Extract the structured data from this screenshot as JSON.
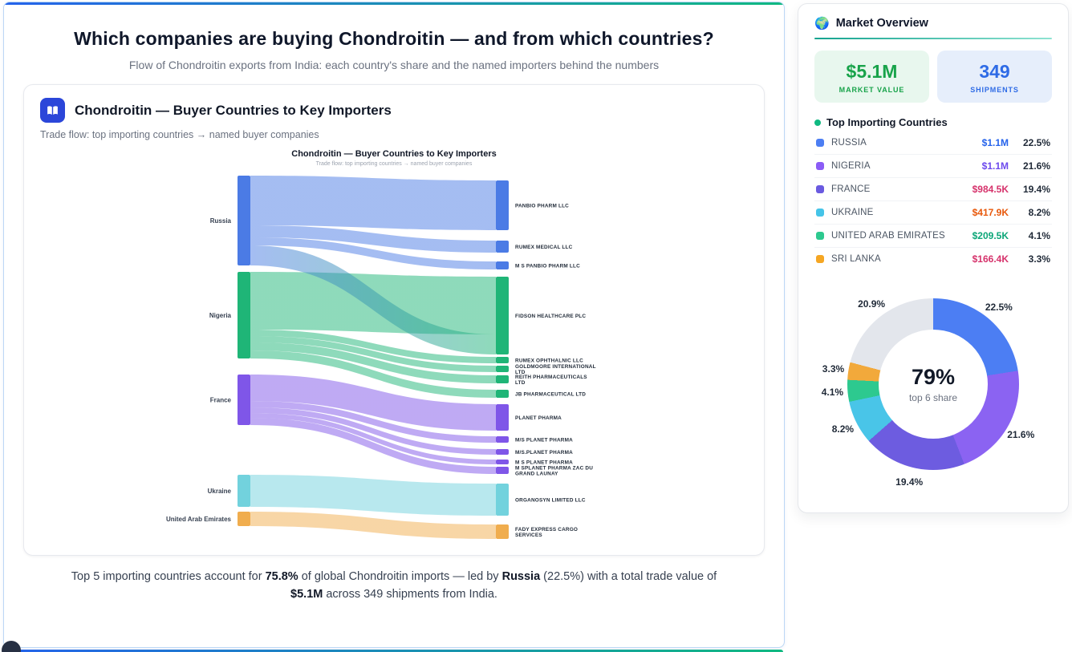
{
  "page": {
    "title": "Which companies are buying Chondroitin — and from which countries?",
    "subtitle": "Flow of Chondroitin exports from India: each country's share and the named importers behind the numbers"
  },
  "card": {
    "title": "Chondroitin — Buyer Countries to Key Importers",
    "subtitle": "Trade flow: top importing countries → named buyer companies"
  },
  "footer": {
    "part1": "Top 5 importing countries account for ",
    "pct": "75.8%",
    "part2": " of global Chondroitin imports — led by ",
    "country": "Russia",
    "part3": " (22.5%) with a total trade value of ",
    "value": "$5.1M",
    "part4": " across 349 shipments from India."
  },
  "sidebar": {
    "globe_icon": "🌍",
    "title": "Market Overview",
    "stats": [
      {
        "value": "$5.1M",
        "label": "MARKET VALUE"
      },
      {
        "value": "349",
        "label": "SHIPMENTS"
      }
    ],
    "list_title": "Top Importing Countries",
    "countries": [
      {
        "name": "RUSSIA",
        "value": "$1.1M",
        "pct": "22.5%",
        "bullet": "#4c7ef3",
        "value_color": "#2563eb"
      },
      {
        "name": "NIGERIA",
        "value": "$1.1M",
        "pct": "21.6%",
        "bullet": "#8b5cf6",
        "value_color": "#6d4aed"
      },
      {
        "name": "FRANCE",
        "value": "$984.5K",
        "pct": "19.4%",
        "bullet": "#6a5ae0",
        "value_color": "#d6336c"
      },
      {
        "name": "UKRAINE",
        "value": "$417.9K",
        "pct": "8.2%",
        "bullet": "#45c4e8",
        "value_color": "#e8590c"
      },
      {
        "name": "UNITED ARAB EMIRATES",
        "value": "$209.5K",
        "pct": "4.1%",
        "bullet": "#2dc98f",
        "value_color": "#0ca678"
      },
      {
        "name": "SRI LANKA",
        "value": "$166.4K",
        "pct": "3.3%",
        "bullet": "#f5a623",
        "value_color": "#d6336c"
      }
    ]
  },
  "chart_data": [
    {
      "type": "sankey",
      "title": "Chondroitin — Buyer Countries to Key Importers",
      "subtitle": "Trade flow: top importing countries → named buyer companies",
      "left_nodes": [
        {
          "name": "Russia",
          "color": "#4b7be5",
          "value": 112,
          "gap": 0
        },
        {
          "name": "Nigeria",
          "color": "#1fb577",
          "value": 108,
          "gap": 8
        },
        {
          "name": "France",
          "color": "#7f56e8",
          "value": 63,
          "gap": 20
        },
        {
          "name": "Ukraine",
          "color": "#72d2dd",
          "value": 40,
          "gap": 62
        },
        {
          "name": "United Arab Emirates",
          "color": "#f0ad4e",
          "value": 18,
          "gap": 6
        }
      ],
      "right_nodes": [
        {
          "name": "PANBIO PHARM LLC",
          "color": "#4b7be5",
          "value": 62,
          "gap": 3
        },
        {
          "name": "RUMEX MEDICAL LLC",
          "color": "#4b7be5",
          "value": 15,
          "gap": 13
        },
        {
          "name": "M S PANBIO PHARM LLC",
          "color": "#4b7be5",
          "value": 10,
          "gap": 11
        },
        {
          "name": "FIDSON HEALTHCARE PLC",
          "color": "#1fb577",
          "value": 97,
          "gap": 9
        },
        {
          "name": "RUMEX OPHTHALNIC LLC",
          "color": "#1fb577",
          "value": 8,
          "gap": 3
        },
        {
          "name": "GOLDMOORE INTERNATIONAL\nLTD",
          "color": "#1fb577",
          "value": 8,
          "gap": 3
        },
        {
          "name": "REITH PHARMACEUTICALS\nLTD",
          "color": "#1fb577",
          "value": 10,
          "gap": 4
        },
        {
          "name": "JB PHARMACEUTICAL LTD",
          "color": "#1fb577",
          "value": 10,
          "gap": 8
        },
        {
          "name": "PLANET PHARMA",
          "color": "#7f56e8",
          "value": 33,
          "gap": 8
        },
        {
          "name": "M/S PLANET PHARMA",
          "color": "#7f56e8",
          "value": 8,
          "gap": 7
        },
        {
          "name": "M/S.PLANET PHARMA",
          "color": "#7f56e8",
          "value": 7,
          "gap": 8
        },
        {
          "name": "M S PLANET PHARMA",
          "color": "#7f56e8",
          "value": 6,
          "gap": 6
        },
        {
          "name": "M SPLANET PHARMA ZAC DU\nGRAND LAUNAY",
          "color": "#7f56e8",
          "value": 9,
          "gap": 3
        },
        {
          "name": "ORGANOSYN LIMITED LLC",
          "color": "#72d2dd",
          "value": 40,
          "gap": 12
        },
        {
          "name": "FADY EXPRESS CARGO\nSERVICES",
          "color": "#f0ad4e",
          "value": 18,
          "gap": 11
        }
      ],
      "links": [
        {
          "source": "Russia",
          "target": "PANBIO PHARM LLC",
          "value": 62
        },
        {
          "source": "Russia",
          "target": "RUMEX MEDICAL LLC",
          "value": 15
        },
        {
          "source": "Russia",
          "target": "M S PANBIO PHARM LLC",
          "value": 10
        },
        {
          "source": "Nigeria",
          "target": "FIDSON HEALTHCARE PLC",
          "value": 72
        },
        {
          "source": "Russia",
          "target": "FIDSON HEALTHCARE PLC",
          "value": 25
        },
        {
          "source": "Nigeria",
          "target": "RUMEX OPHTHALNIC LLC",
          "value": 8
        },
        {
          "source": "Nigeria",
          "target": "GOLDMOORE INTERNATIONAL\nLTD",
          "value": 8
        },
        {
          "source": "Nigeria",
          "target": "REITH PHARMACEUTICALS\nLTD",
          "value": 10
        },
        {
          "source": "Nigeria",
          "target": "JB PHARMACEUTICAL LTD",
          "value": 10
        },
        {
          "source": "France",
          "target": "PLANET PHARMA",
          "value": 33
        },
        {
          "source": "France",
          "target": "M/S PLANET PHARMA",
          "value": 8
        },
        {
          "source": "France",
          "target": "M/S.PLANET PHARMA",
          "value": 7
        },
        {
          "source": "France",
          "target": "M S PLANET PHARMA",
          "value": 6
        },
        {
          "source": "France",
          "target": "M SPLANET PHARMA ZAC DU\nGRAND LAUNAY",
          "value": 9
        },
        {
          "source": "Ukraine",
          "target": "ORGANOSYN LIMITED LLC",
          "value": 40
        },
        {
          "source": "United Arab Emirates",
          "target": "FADY EXPRESS CARGO\nSERVICES",
          "value": 18
        }
      ]
    },
    {
      "type": "pie",
      "center_value": "79%",
      "center_label": "top 6 share",
      "segments": [
        {
          "label": "22.5%",
          "value": 22.5,
          "color": "#4c7ef3"
        },
        {
          "label": "21.6%",
          "value": 21.6,
          "color": "#8b63f2"
        },
        {
          "label": "19.4%",
          "value": 19.4,
          "color": "#6d5ce0"
        },
        {
          "label": "8.2%",
          "value": 8.2,
          "color": "#49c5e8"
        },
        {
          "label": "4.1%",
          "value": 4.1,
          "color": "#2dc98f"
        },
        {
          "label": "3.3%",
          "value": 3.3,
          "color": "#f2a93b"
        },
        {
          "label": "20.9%",
          "value": 20.9,
          "color": "#e3e6ec"
        }
      ]
    }
  ]
}
